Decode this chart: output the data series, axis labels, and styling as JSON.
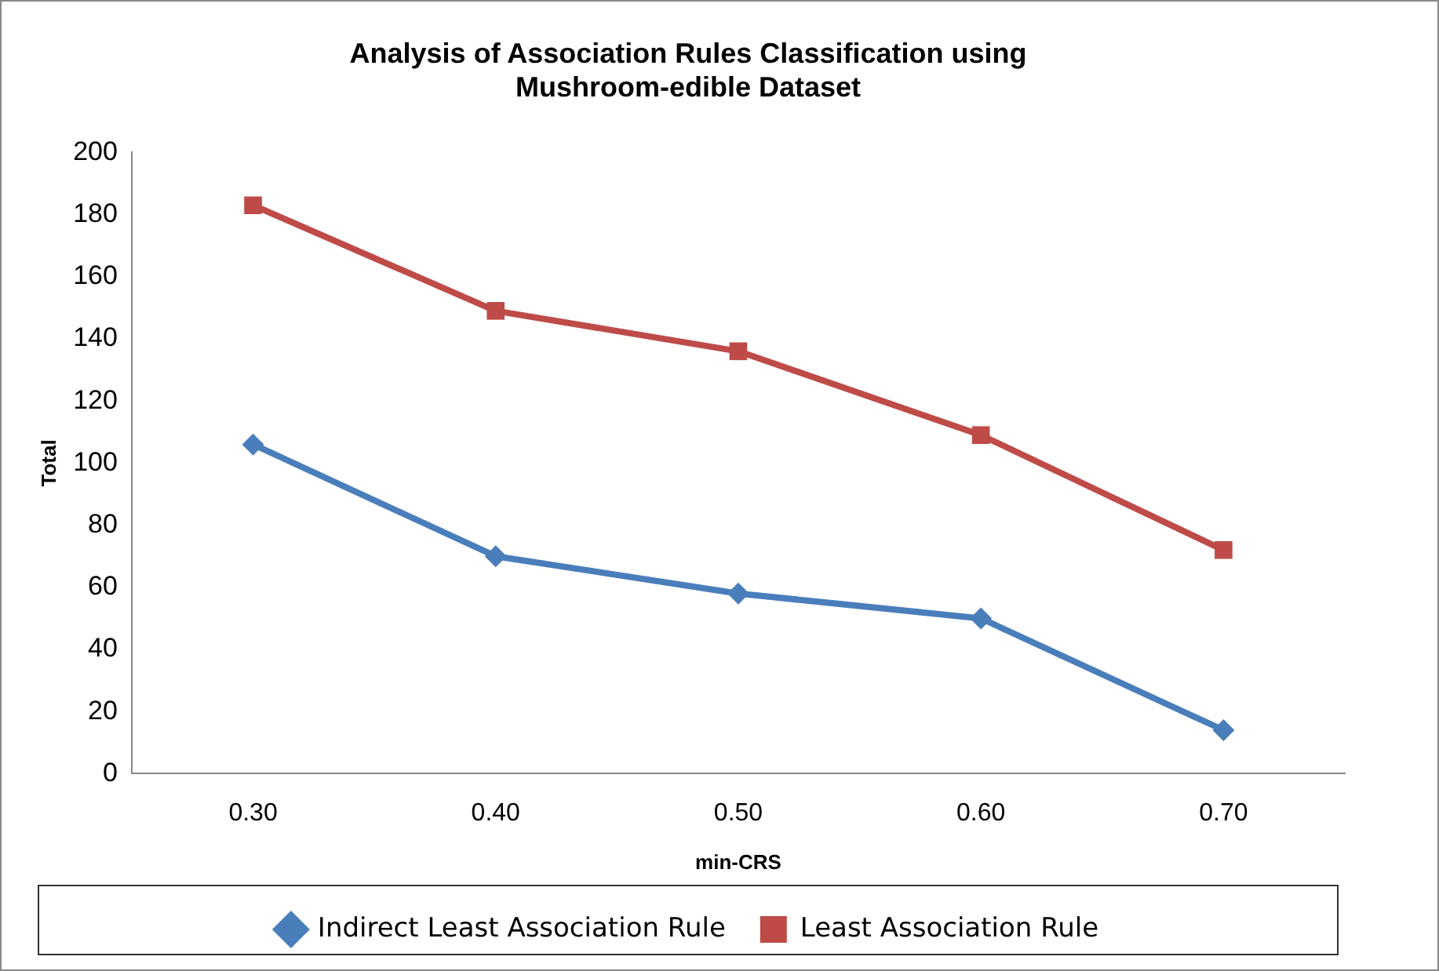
{
  "chart_data": {
    "type": "line",
    "title": "Analysis of Association Rules Classification using\nMushroom-edible Dataset",
    "xlabel": "min-CRS",
    "ylabel": "Total",
    "categories": [
      "0.30",
      "0.40",
      "0.50",
      "0.60",
      "0.70"
    ],
    "series": [
      {
        "name": "Indirect Least Association Rule",
        "color": "#4a7ebb",
        "values": [
          106,
          70,
          58,
          50,
          14
        ],
        "marker": "diamond"
      },
      {
        "name": "Least Association Rule",
        "color": "#be4b48",
        "values": [
          183,
          149,
          136,
          109,
          72
        ],
        "marker": "square"
      }
    ],
    "ylim": [
      0,
      200
    ],
    "yticks": [
      0,
      20,
      40,
      60,
      80,
      100,
      120,
      140,
      160,
      180,
      200
    ],
    "grid": false,
    "legend": "bottom",
    "line_style": "solid"
  }
}
